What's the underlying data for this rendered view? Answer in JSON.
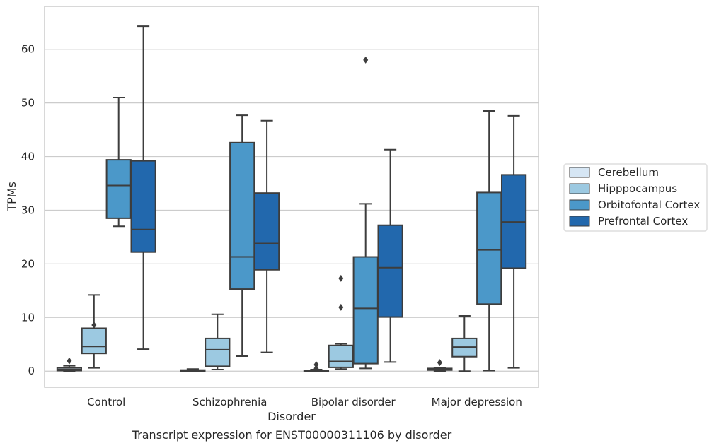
{
  "caption": "Transcript expression for ENST00000311106 by disorder",
  "chart_data": {
    "type": "boxplot",
    "xlabel": "Disorder",
    "ylabel": "TPMs",
    "ylim": [
      -3,
      68
    ],
    "yticks": [
      0,
      10,
      20,
      30,
      40,
      50,
      60
    ],
    "grid": true,
    "legend_position": "right",
    "categories": [
      "Control",
      "Schizophrenia",
      "Bipolar disorder",
      "Major depression"
    ],
    "series": [
      {
        "name": "Cerebellum",
        "color": "#d6e6f4",
        "boxes": [
          {
            "whisker_low": 0.0,
            "q1": 0.1,
            "median": 0.3,
            "q3": 0.6,
            "whisker_high": 1.0,
            "outliers": [
              1.9
            ]
          },
          {
            "whisker_low": 0.0,
            "q1": 0.05,
            "median": 0.1,
            "q3": 0.2,
            "whisker_high": 0.4,
            "outliers": []
          },
          {
            "whisker_low": 0.0,
            "q1": 0.05,
            "median": 0.1,
            "q3": 0.15,
            "whisker_high": 0.3,
            "outliers": [
              0.5,
              1.2
            ]
          },
          {
            "whisker_low": 0.0,
            "q1": 0.2,
            "median": 0.35,
            "q3": 0.5,
            "whisker_high": 0.6,
            "outliers": [
              1.6
            ]
          }
        ]
      },
      {
        "name": "Hipppocampus",
        "color": "#9cc9e1",
        "boxes": [
          {
            "whisker_low": 0.6,
            "q1": 3.3,
            "median": 4.6,
            "q3": 8.0,
            "whisker_high": 14.2,
            "outliers": [
              8.6
            ]
          },
          {
            "whisker_low": 0.3,
            "q1": 0.9,
            "median": 4.0,
            "q3": 6.1,
            "whisker_high": 10.6,
            "outliers": []
          },
          {
            "whisker_low": 0.4,
            "q1": 0.7,
            "median": 1.8,
            "q3": 4.8,
            "whisker_high": 5.1,
            "outliers": [
              11.9,
              17.3
            ]
          },
          {
            "whisker_low": 0.0,
            "q1": 2.7,
            "median": 4.5,
            "q3": 6.1,
            "whisker_high": 10.3,
            "outliers": []
          }
        ]
      },
      {
        "name": "Orbitofontal Cortex",
        "color": "#4b98c9",
        "boxes": [
          {
            "whisker_low": 27.0,
            "q1": 28.5,
            "median": 34.6,
            "q3": 39.4,
            "whisker_high": 51.0,
            "outliers": []
          },
          {
            "whisker_low": 2.8,
            "q1": 15.3,
            "median": 21.3,
            "q3": 42.6,
            "whisker_high": 47.7,
            "outliers": []
          },
          {
            "whisker_low": 0.5,
            "q1": 1.4,
            "median": 11.7,
            "q3": 21.3,
            "whisker_high": 31.2,
            "outliers": [
              58.0
            ]
          },
          {
            "whisker_low": 0.1,
            "q1": 12.5,
            "median": 22.6,
            "q3": 33.3,
            "whisker_high": 48.5,
            "outliers": []
          }
        ]
      },
      {
        "name": "Prefrontal Cortex",
        "color": "#2268ad",
        "boxes": [
          {
            "whisker_low": 4.1,
            "q1": 22.2,
            "median": 26.4,
            "q3": 39.2,
            "whisker_high": 64.3,
            "outliers": []
          },
          {
            "whisker_low": 3.5,
            "q1": 18.9,
            "median": 23.8,
            "q3": 33.2,
            "whisker_high": 46.7,
            "outliers": []
          },
          {
            "whisker_low": 1.7,
            "q1": 10.1,
            "median": 19.3,
            "q3": 27.2,
            "whisker_high": 41.3,
            "outliers": []
          },
          {
            "whisker_low": 0.6,
            "q1": 19.2,
            "median": 27.8,
            "q3": 36.6,
            "whisker_high": 47.6,
            "outliers": []
          }
        ]
      }
    ]
  }
}
